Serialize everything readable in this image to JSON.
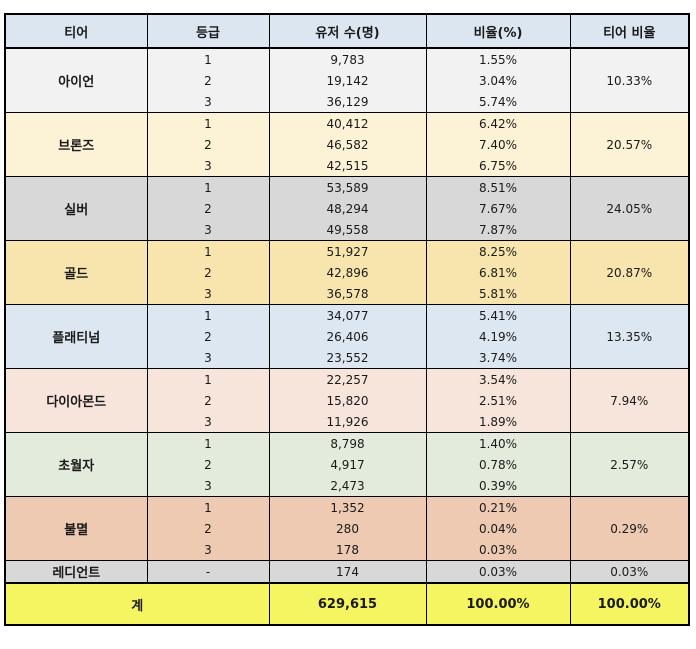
{
  "headers": [
    "티어",
    "등급",
    "유저 수(명)",
    "비율(%)",
    "티어 비율"
  ],
  "colors": {
    "header": "#dce6f1",
    "total": "#f5f562"
  },
  "tiers": [
    {
      "name": "아이언",
      "color": "#f2f2f2",
      "tier_ratio": "10.33%",
      "rows": [
        {
          "grade": "1",
          "users": "9,783",
          "ratio": "1.55%"
        },
        {
          "grade": "2",
          "users": "19,142",
          "ratio": "3.04%"
        },
        {
          "grade": "3",
          "users": "36,129",
          "ratio": "5.74%"
        }
      ]
    },
    {
      "name": "브론즈",
      "color": "#fcf2d5",
      "tier_ratio": "20.57%",
      "rows": [
        {
          "grade": "1",
          "users": "40,412",
          "ratio": "6.42%"
        },
        {
          "grade": "2",
          "users": "46,582",
          "ratio": "7.40%"
        },
        {
          "grade": "3",
          "users": "42,515",
          "ratio": "6.75%"
        }
      ]
    },
    {
      "name": "실버",
      "color": "#d8d8d8",
      "tier_ratio": "24.05%",
      "rows": [
        {
          "grade": "1",
          "users": "53,589",
          "ratio": "8.51%"
        },
        {
          "grade": "2",
          "users": "48,294",
          "ratio": "7.67%"
        },
        {
          "grade": "3",
          "users": "49,558",
          "ratio": "7.87%"
        }
      ]
    },
    {
      "name": "골드",
      "color": "#f7e5ad",
      "tier_ratio": "20.87%",
      "rows": [
        {
          "grade": "1",
          "users": "51,927",
          "ratio": "8.25%"
        },
        {
          "grade": "2",
          "users": "42,896",
          "ratio": "6.81%"
        },
        {
          "grade": "3",
          "users": "36,578",
          "ratio": "5.81%"
        }
      ]
    },
    {
      "name": "플래티넘",
      "color": "#dde7f1",
      "tier_ratio": "13.35%",
      "rows": [
        {
          "grade": "1",
          "users": "34,077",
          "ratio": "5.41%"
        },
        {
          "grade": "2",
          "users": "26,406",
          "ratio": "4.19%"
        },
        {
          "grade": "3",
          "users": "23,552",
          "ratio": "3.74%"
        }
      ]
    },
    {
      "name": "다이아몬드",
      "color": "#f7e4da",
      "tier_ratio": "7.94%",
      "rows": [
        {
          "grade": "1",
          "users": "22,257",
          "ratio": "3.54%"
        },
        {
          "grade": "2",
          "users": "15,820",
          "ratio": "2.51%"
        },
        {
          "grade": "3",
          "users": "11,926",
          "ratio": "1.89%"
        }
      ]
    },
    {
      "name": "초월자",
      "color": "#e3ecdc",
      "tier_ratio": "2.57%",
      "rows": [
        {
          "grade": "1",
          "users": "8,798",
          "ratio": "1.40%"
        },
        {
          "grade": "2",
          "users": "4,917",
          "ratio": "0.78%"
        },
        {
          "grade": "3",
          "users": "2,473",
          "ratio": "0.39%"
        }
      ]
    },
    {
      "name": "불멸",
      "color": "#eecab2",
      "tier_ratio": "0.29%",
      "rows": [
        {
          "grade": "1",
          "users": "1,352",
          "ratio": "0.21%"
        },
        {
          "grade": "2",
          "users": "280",
          "ratio": "0.04%"
        },
        {
          "grade": "3",
          "users": "178",
          "ratio": "0.03%"
        }
      ]
    },
    {
      "name": "레디언트",
      "color": "#d8d8d8",
      "tier_ratio": "0.03%",
      "rows": [
        {
          "grade": "-",
          "users": "174",
          "ratio": "0.03%"
        }
      ]
    }
  ],
  "total": {
    "label": "계",
    "users": "629,615",
    "ratio": "100.00%",
    "tier_ratio": "100.00%"
  }
}
